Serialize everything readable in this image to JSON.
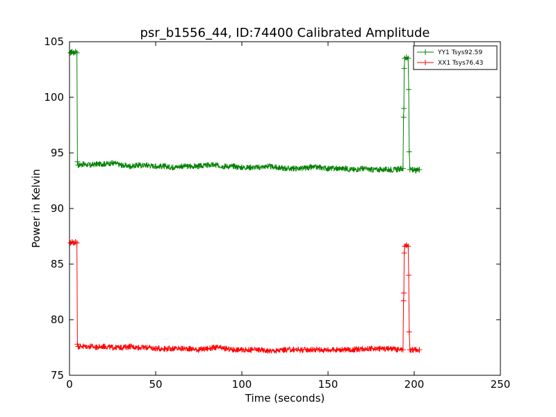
{
  "chart_data": {
    "type": "line",
    "title": "psr_b1556_44, ID:74400 Calibrated Amplitude",
    "xlabel": "Time (seconds)",
    "ylabel": "Power in Kelvin",
    "xlim": [
      0,
      250
    ],
    "ylim": [
      75,
      105
    ],
    "xticks": [
      0,
      50,
      100,
      150,
      200,
      250
    ],
    "yticks": [
      75,
      80,
      85,
      90,
      95,
      100,
      105
    ],
    "grid": false,
    "legend_position": "top-right",
    "series": [
      {
        "name": "YY1 Tsys92.59",
        "color": "#008000",
        "marker": "+",
        "points": [
          [
            0.5,
            104.0
          ],
          [
            1.5,
            104.1
          ],
          [
            2.5,
            104.0
          ],
          [
            3.5,
            104.1
          ],
          [
            4.3,
            104.0
          ],
          [
            4.6,
            94.2
          ],
          [
            5.0,
            93.9
          ],
          [
            8,
            94.0
          ],
          [
            12,
            93.9
          ],
          [
            16,
            94.0
          ],
          [
            20,
            94.0
          ],
          [
            25,
            94.1
          ],
          [
            30,
            93.9
          ],
          [
            35,
            93.8
          ],
          [
            40,
            93.9
          ],
          [
            45,
            93.9
          ],
          [
            50,
            93.8
          ],
          [
            55,
            93.8
          ],
          [
            60,
            93.7
          ],
          [
            65,
            93.8
          ],
          [
            70,
            93.8
          ],
          [
            75,
            93.8
          ],
          [
            80,
            93.9
          ],
          [
            85,
            93.9
          ],
          [
            90,
            93.8
          ],
          [
            95,
            93.8
          ],
          [
            100,
            93.7
          ],
          [
            105,
            93.7
          ],
          [
            110,
            93.7
          ],
          [
            115,
            93.8
          ],
          [
            120,
            93.7
          ],
          [
            125,
            93.6
          ],
          [
            130,
            93.6
          ],
          [
            135,
            93.6
          ],
          [
            140,
            93.7
          ],
          [
            145,
            93.7
          ],
          [
            150,
            93.6
          ],
          [
            155,
            93.6
          ],
          [
            160,
            93.6
          ],
          [
            165,
            93.5
          ],
          [
            170,
            93.6
          ],
          [
            175,
            93.5
          ],
          [
            180,
            93.5
          ],
          [
            185,
            93.5
          ],
          [
            190,
            93.5
          ],
          [
            193.5,
            93.6
          ],
          [
            193.8,
            98.2
          ],
          [
            194.0,
            99.0
          ],
          [
            194.2,
            102.6
          ],
          [
            194.5,
            103.5
          ],
          [
            195.5,
            103.6
          ],
          [
            196.5,
            103.5
          ],
          [
            196.8,
            100.7
          ],
          [
            197.1,
            95.1
          ],
          [
            197.5,
            93.5
          ],
          [
            199,
            93.5
          ],
          [
            201,
            93.4
          ],
          [
            203,
            93.5
          ]
        ]
      },
      {
        "name": "XX1 Tsys76.43",
        "color": "#ff0000",
        "marker": "+",
        "points": [
          [
            0.5,
            86.9
          ],
          [
            1.5,
            87.0
          ],
          [
            2.5,
            86.9
          ],
          [
            3.5,
            87.0
          ],
          [
            4.3,
            86.9
          ],
          [
            4.6,
            77.8
          ],
          [
            5.0,
            77.6
          ],
          [
            8,
            77.6
          ],
          [
            12,
            77.6
          ],
          [
            16,
            77.5
          ],
          [
            20,
            77.6
          ],
          [
            25,
            77.5
          ],
          [
            30,
            77.5
          ],
          [
            35,
            77.6
          ],
          [
            40,
            77.5
          ],
          [
            45,
            77.5
          ],
          [
            50,
            77.4
          ],
          [
            55,
            77.4
          ],
          [
            60,
            77.4
          ],
          [
            65,
            77.4
          ],
          [
            70,
            77.4
          ],
          [
            75,
            77.3
          ],
          [
            80,
            77.4
          ],
          [
            85,
            77.5
          ],
          [
            90,
            77.4
          ],
          [
            95,
            77.3
          ],
          [
            100,
            77.3
          ],
          [
            105,
            77.3
          ],
          [
            110,
            77.3
          ],
          [
            115,
            77.2
          ],
          [
            120,
            77.2
          ],
          [
            125,
            77.3
          ],
          [
            130,
            77.3
          ],
          [
            135,
            77.3
          ],
          [
            140,
            77.3
          ],
          [
            145,
            77.3
          ],
          [
            150,
            77.3
          ],
          [
            155,
            77.3
          ],
          [
            160,
            77.3
          ],
          [
            165,
            77.3
          ],
          [
            170,
            77.4
          ],
          [
            175,
            77.4
          ],
          [
            180,
            77.4
          ],
          [
            185,
            77.4
          ],
          [
            190,
            77.3
          ],
          [
            193.5,
            77.3
          ],
          [
            193.8,
            81.7
          ],
          [
            194.0,
            82.4
          ],
          [
            194.2,
            86.0
          ],
          [
            194.5,
            86.6
          ],
          [
            195.5,
            86.7
          ],
          [
            196.5,
            86.6
          ],
          [
            196.8,
            84.0
          ],
          [
            197.1,
            78.9
          ],
          [
            197.5,
            77.3
          ],
          [
            199,
            77.3
          ],
          [
            201,
            77.3
          ],
          [
            203,
            77.3
          ]
        ]
      }
    ]
  }
}
